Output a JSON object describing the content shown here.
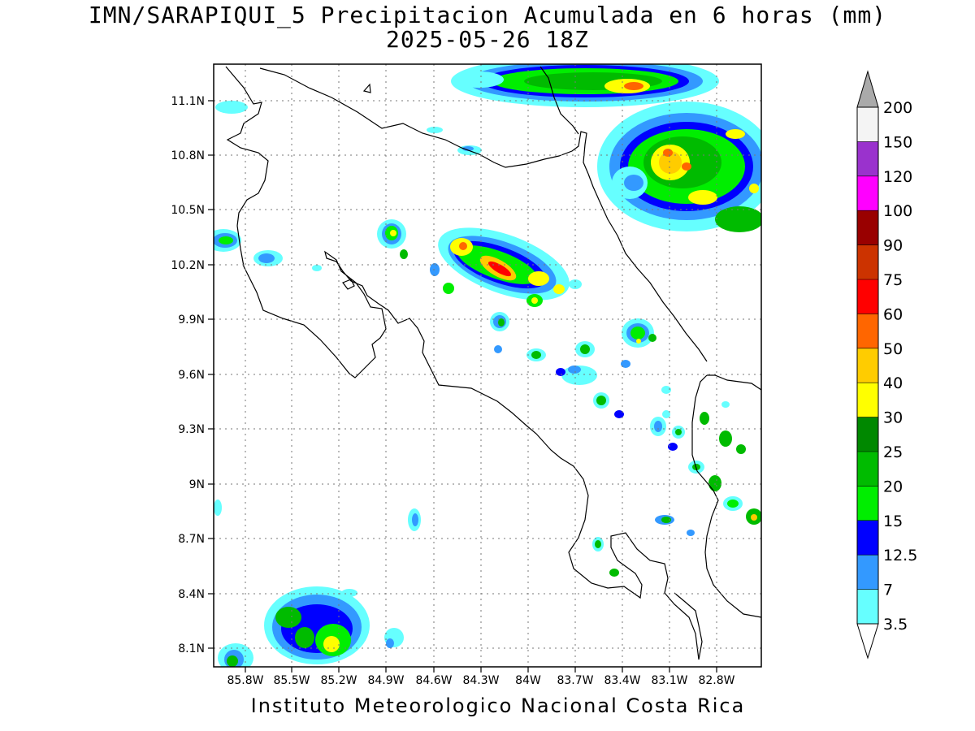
{
  "title_line1": "IMN/SARAPIQUI_5 Precipitacion Acumulada en 6 horas (mm)",
  "title_line2": "2025-05-26 18Z",
  "footer": "Instituto Meteorologico Nacional Costa Rica",
  "map": {
    "lon_range": [
      -86.02,
      -82.61
    ],
    "lat_range": [
      8.0,
      11.33
    ],
    "lon_ticks": [
      "85.8W",
      "85.5W",
      "85.2W",
      "84.9W",
      "84.6W",
      "84.3W",
      "84W",
      "83.7W",
      "83.4W",
      "83.1W",
      "82.8W"
    ],
    "lat_ticks": [
      "11.1N",
      "10.8N",
      "10.5N",
      "10.2N",
      "9.9N",
      "9.6N",
      "9.3N",
      "9N",
      "8.7N",
      "8.4N",
      "8.1N"
    ],
    "grid": "dotted"
  },
  "colorbar": {
    "levels": [
      "200",
      "150",
      "120",
      "100",
      "90",
      "75",
      "60",
      "50",
      "40",
      "30",
      "25",
      "20",
      "15",
      "12.5",
      "7",
      "3.5"
    ],
    "colors": [
      "#f4f4f4",
      "#9a32cd",
      "#ff00ff",
      "#990000",
      "#cc3300",
      "#ff0000",
      "#ff6600",
      "#ffcc00",
      "#ffff00",
      "#008800",
      "#00bb00",
      "#00ee00",
      "#0000ff",
      "#3399ff",
      "#66ffff"
    ],
    "over_color": "#aaaaaa",
    "under_color": "#ffffff"
  }
}
